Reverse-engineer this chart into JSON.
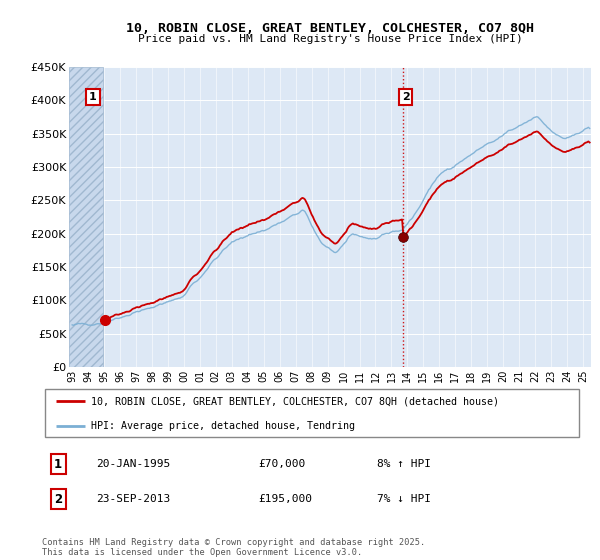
{
  "title": "10, ROBIN CLOSE, GREAT BENTLEY, COLCHESTER, CO7 8QH",
  "subtitle": "Price paid vs. HM Land Registry's House Price Index (HPI)",
  "ylim": [
    0,
    450000
  ],
  "yticks": [
    0,
    50000,
    100000,
    150000,
    200000,
    250000,
    300000,
    350000,
    400000,
    450000
  ],
  "ytick_labels": [
    "£0",
    "£50K",
    "£100K",
    "£150K",
    "£200K",
    "£250K",
    "£300K",
    "£350K",
    "£400K",
    "£450K"
  ],
  "sale1_year": 1995.05,
  "sale1_price": 70000,
  "sale1_label": "1",
  "sale1_date": "20-JAN-1995",
  "sale1_price_str": "£70,000",
  "sale1_pct": "8% ↑ HPI",
  "sale2_year": 2013.73,
  "sale2_price": 195000,
  "sale2_label": "2",
  "sale2_date": "23-SEP-2013",
  "sale2_price_str": "£195,000",
  "sale2_pct": "7% ↓ HPI",
  "legend_line1": "10, ROBIN CLOSE, GREAT BENTLEY, COLCHESTER, CO7 8QH (detached house)",
  "legend_line2": "HPI: Average price, detached house, Tendring",
  "footer": "Contains HM Land Registry data © Crown copyright and database right 2025.\nThis data is licensed under the Open Government Licence v3.0.",
  "line_color_red": "#cc0000",
  "line_color_blue": "#7bafd4",
  "plot_bg_color": "#dde8f5",
  "hatch_bg": "#c8d8ec"
}
